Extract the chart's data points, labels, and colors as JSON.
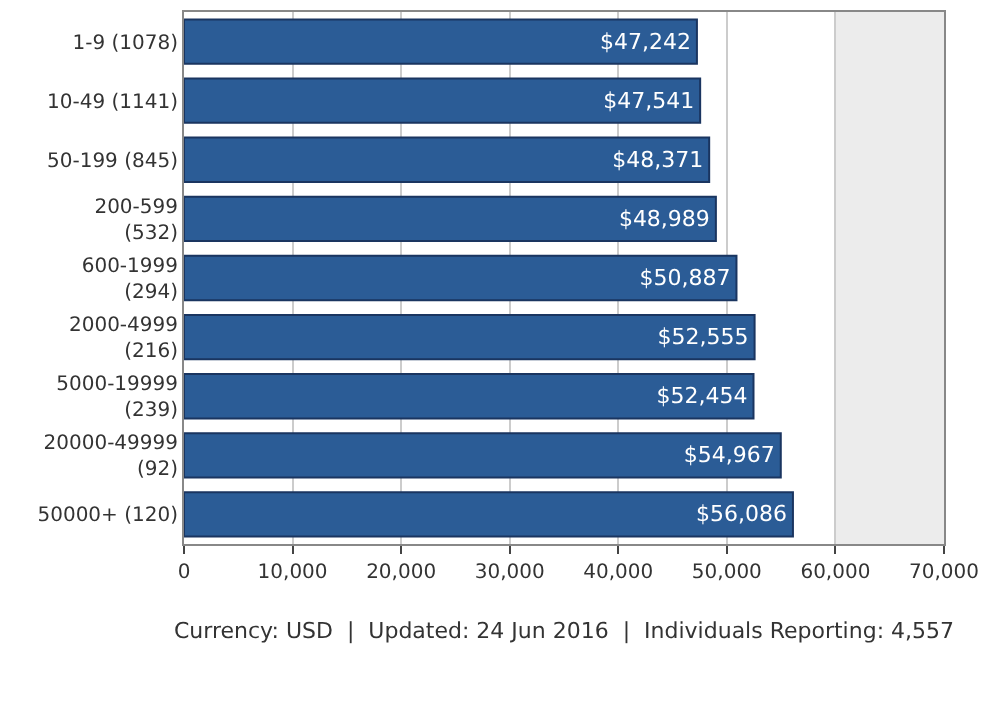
{
  "chart_data": {
    "type": "bar",
    "orientation": "horizontal",
    "categories": [
      "1-9 (1078)",
      "10-49 (1141)",
      "50-199 (845)",
      "200-599 (532)",
      "600-1999 (294)",
      "2000-4999 (216)",
      "5000-19999 (239)",
      "20000-49999 (92)",
      "50000+ (120)"
    ],
    "values": [
      47242,
      47541,
      48371,
      48989,
      50887,
      52555,
      52454,
      54967,
      56086
    ],
    "value_labels": [
      "$47,242",
      "$47,541",
      "$48,371",
      "$48,989",
      "$50,887",
      "$52,555",
      "$52,454",
      "$54,967",
      "$56,086"
    ],
    "color": "#2b5c96",
    "xlim": [
      0,
      70000
    ],
    "xticks": [
      {
        "value": 0,
        "label": "0"
      },
      {
        "value": 10000,
        "label": "10,000"
      },
      {
        "value": 20000,
        "label": "20,000"
      },
      {
        "value": 30000,
        "label": "30,000"
      },
      {
        "value": 40000,
        "label": "40,000"
      },
      {
        "value": 50000,
        "label": "50,000"
      },
      {
        "value": 60000,
        "label": "60,000"
      },
      {
        "value": 70000,
        "label": "70,000"
      }
    ],
    "bands": [
      {
        "axis": "x",
        "from": 60000,
        "to": 70000,
        "color": "#ececec"
      }
    ],
    "grid": "x",
    "annotations": [
      "Currency: USD  |  Updated: 24 Jun 2016  |  Individuals Reporting: 4,557"
    ]
  }
}
